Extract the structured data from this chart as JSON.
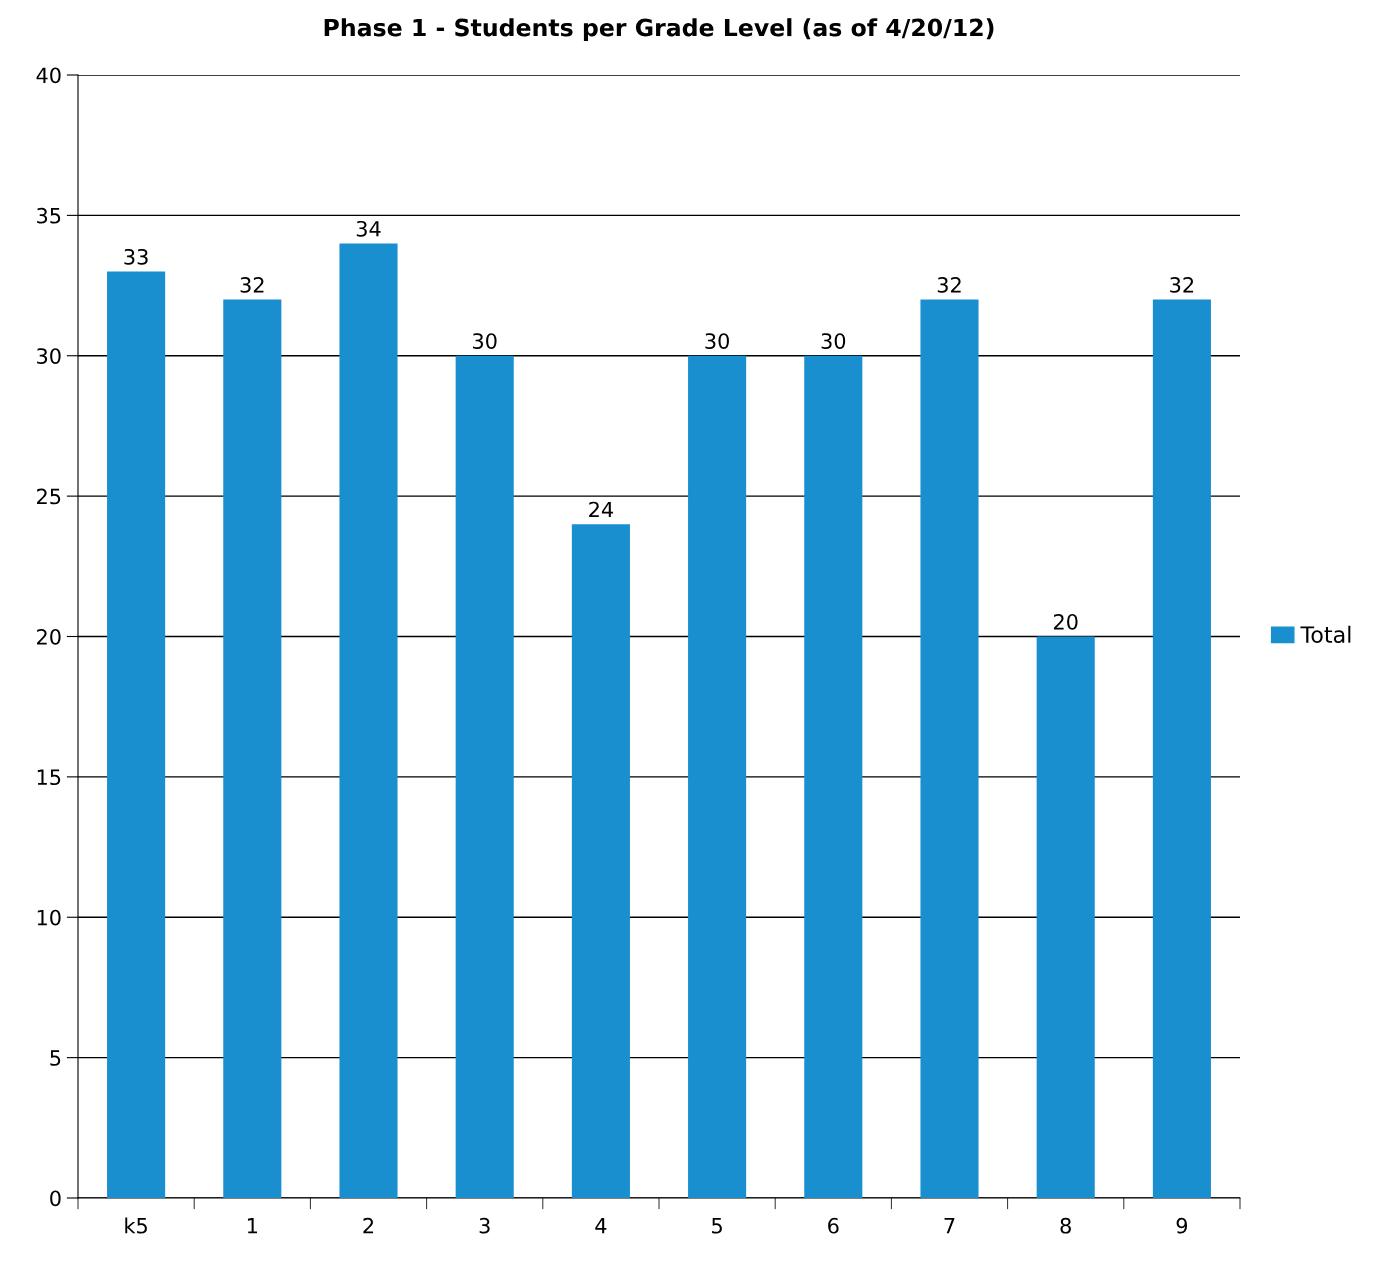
{
  "chart_data": {
    "type": "bar",
    "title": "Phase 1 - Students per Grade Level (as of 4/20/12)",
    "categories": [
      "k5",
      "1",
      "2",
      "3",
      "4",
      "5",
      "6",
      "7",
      "8",
      "9"
    ],
    "series": [
      {
        "name": "Total",
        "color": "#1a8fd0",
        "values": [
          33,
          32,
          34,
          30,
          24,
          30,
          30,
          32,
          20,
          32
        ]
      }
    ],
    "ylim": [
      0,
      40
    ],
    "yticks": [
      0,
      5,
      10,
      15,
      20,
      25,
      30,
      35,
      40
    ],
    "grid": "y",
    "legend": "right",
    "data_labels": true
  }
}
